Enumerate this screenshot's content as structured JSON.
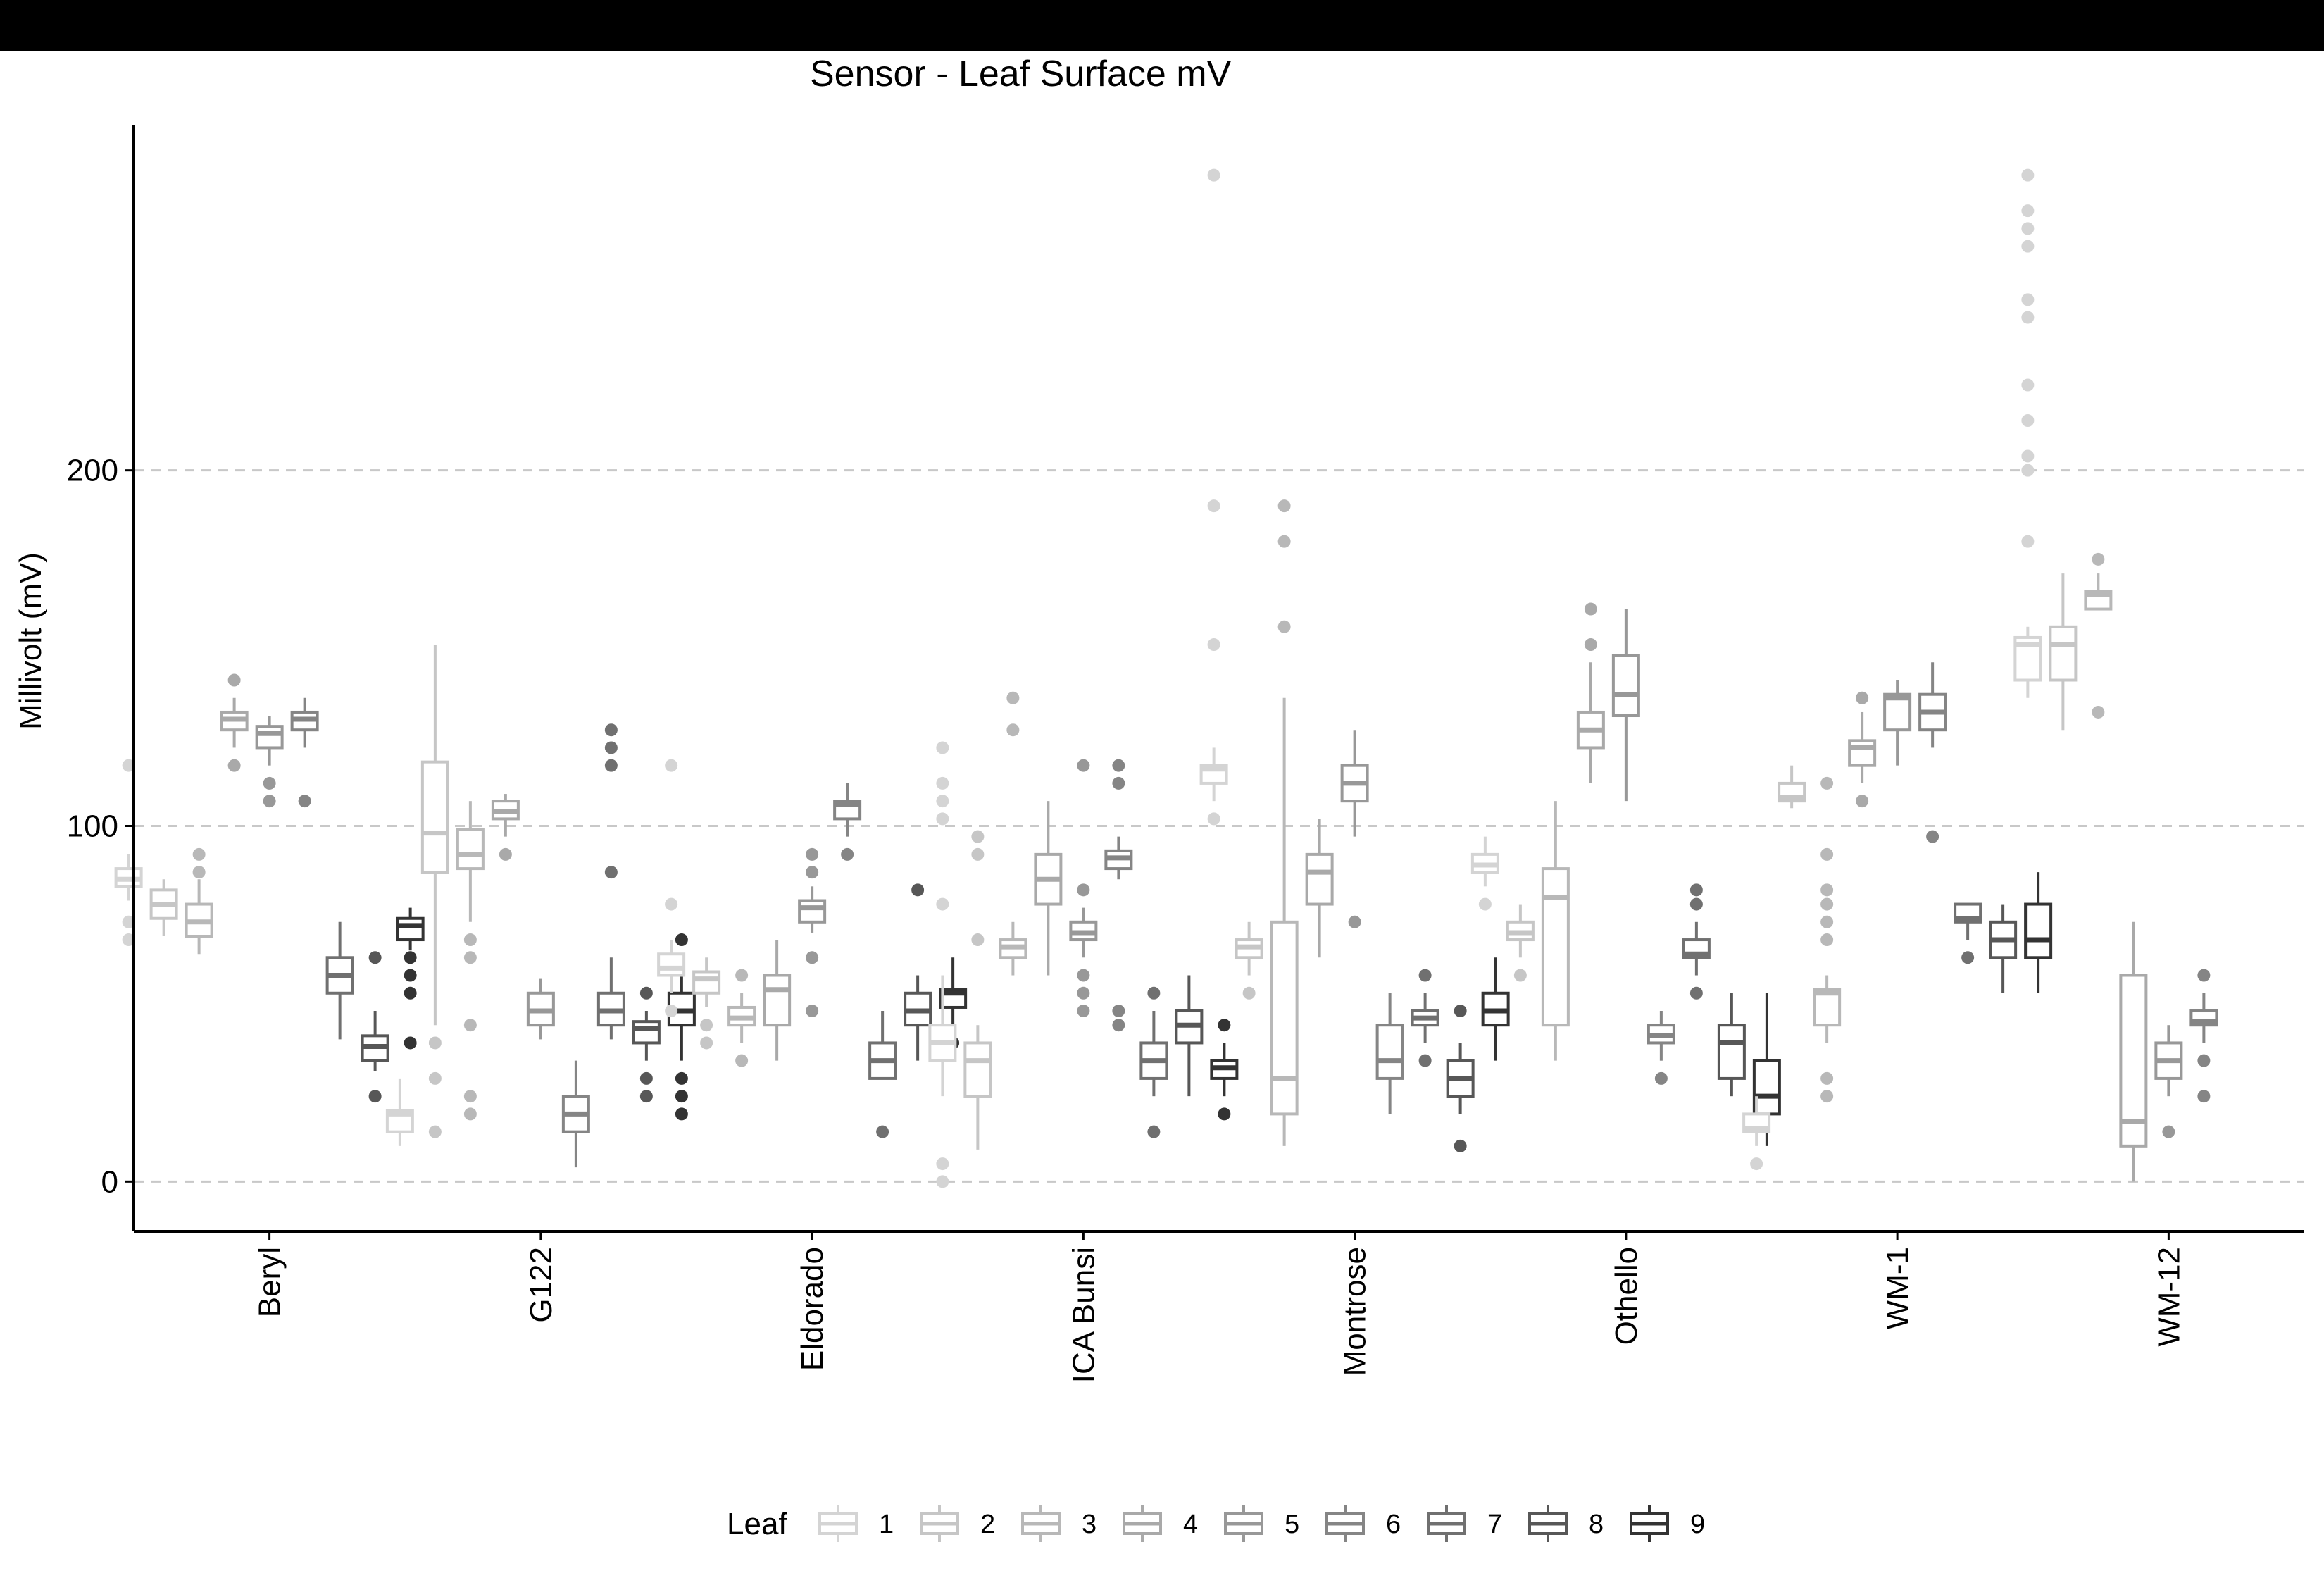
{
  "chart_data": {
    "type": "box",
    "title": "Sensor - Leaf Surface mV",
    "xlabel": "",
    "ylabel": "Millivolt (mV)",
    "ylim": [
      -14,
      297
    ],
    "yticks": [
      0,
      100,
      200
    ],
    "grid": "horizontal dashed at major ticks",
    "categories": [
      "Beryl",
      "G122",
      "Eldorado",
      "ICA Bunsi",
      "Montrose",
      "Othello",
      "WM-1",
      "WM-12"
    ],
    "legend": {
      "title": "Leaf",
      "position": "bottom",
      "items": [
        "1",
        "2",
        "3",
        "4",
        "5",
        "6",
        "7",
        "8",
        "9"
      ]
    },
    "series_colors": [
      "#d4d4d4",
      "#c6c6c6",
      "#b8b8b8",
      "#a9a9a9",
      "#989898",
      "#858585",
      "#707070",
      "#575757",
      "#333333"
    ],
    "boxes": [
      {
        "category": "Beryl",
        "leaf": "1",
        "whisker_low": 79,
        "q1": 83,
        "median": 85,
        "q3": 88,
        "whisker_high": 92,
        "outliers": [
          117,
          73,
          68
        ]
      },
      {
        "category": "Beryl",
        "leaf": "2",
        "whisker_low": 69,
        "q1": 74,
        "median": 78,
        "q3": 82,
        "whisker_high": 85,
        "outliers": []
      },
      {
        "category": "Beryl",
        "leaf": "3",
        "whisker_low": 64,
        "q1": 69,
        "median": 73,
        "q3": 78,
        "whisker_high": 85,
        "outliers": [
          92,
          87
        ]
      },
      {
        "category": "Beryl",
        "leaf": "4",
        "whisker_low": 122,
        "q1": 127,
        "median": 130,
        "q3": 132,
        "whisker_high": 136,
        "outliers": [
          141,
          117
        ]
      },
      {
        "category": "Beryl",
        "leaf": "5",
        "whisker_low": 117,
        "q1": 122,
        "median": 126,
        "q3": 128,
        "whisker_high": 131,
        "outliers": [
          112,
          107
        ]
      },
      {
        "category": "Beryl",
        "leaf": "6",
        "whisker_low": 122,
        "q1": 127,
        "median": 130,
        "q3": 132,
        "whisker_high": 136,
        "outliers": [
          107
        ]
      },
      {
        "category": "Beryl",
        "leaf": "7",
        "whisker_low": 40,
        "q1": 53,
        "median": 58,
        "q3": 63,
        "whisker_high": 73,
        "outliers": []
      },
      {
        "category": "Beryl",
        "leaf": "8",
        "whisker_low": 31,
        "q1": 34,
        "median": 38,
        "q3": 41,
        "whisker_high": 48,
        "outliers": [
          63,
          24
        ]
      },
      {
        "category": "Beryl",
        "leaf": "9",
        "whisker_low": 65,
        "q1": 68,
        "median": 72,
        "q3": 74,
        "whisker_high": 77,
        "outliers": [
          63,
          58,
          53,
          39
        ]
      },
      {
        "category": "G122",
        "leaf": "1",
        "whisker_low": 10,
        "q1": 14,
        "median": 19,
        "q3": 20,
        "whisker_high": 29,
        "outliers": []
      },
      {
        "category": "G122",
        "leaf": "2",
        "whisker_low": 44,
        "q1": 87,
        "median": 98,
        "q3": 118,
        "whisker_high": 151,
        "outliers": [
          39,
          29,
          14
        ]
      },
      {
        "category": "G122",
        "leaf": "3",
        "whisker_low": 73,
        "q1": 88,
        "median": 92,
        "q3": 99,
        "whisker_high": 107,
        "outliers": [
          68,
          63,
          44,
          24,
          19
        ]
      },
      {
        "category": "G122",
        "leaf": "4",
        "whisker_low": 97,
        "q1": 102,
        "median": 104,
        "q3": 107,
        "whisker_high": 109,
        "outliers": [
          92
        ]
      },
      {
        "category": "G122",
        "leaf": "5",
        "whisker_low": 40,
        "q1": 44,
        "median": 48,
        "q3": 53,
        "whisker_high": 57,
        "outliers": []
      },
      {
        "category": "G122",
        "leaf": "6",
        "whisker_low": 4,
        "q1": 14,
        "median": 19,
        "q3": 24,
        "whisker_high": 34,
        "outliers": []
      },
      {
        "category": "G122",
        "leaf": "7",
        "whisker_low": 40,
        "q1": 44,
        "median": 48,
        "q3": 53,
        "whisker_high": 63,
        "outliers": [
          127,
          122,
          117,
          87
        ]
      },
      {
        "category": "G122",
        "leaf": "8",
        "whisker_low": 34,
        "q1": 39,
        "median": 43,
        "q3": 45,
        "whisker_high": 48,
        "outliers": [
          53,
          29,
          24
        ]
      },
      {
        "category": "G122",
        "leaf": "9",
        "whisker_low": 34,
        "q1": 44,
        "median": 48,
        "q3": 53,
        "whisker_high": 63,
        "outliers": [
          68,
          29,
          24,
          19
        ]
      },
      {
        "category": "Eldorado",
        "leaf": "1",
        "whisker_low": 53,
        "q1": 58,
        "median": 60,
        "q3": 64,
        "whisker_high": 68,
        "outliers": [
          117,
          78,
          48
        ]
      },
      {
        "category": "Eldorado",
        "leaf": "2",
        "whisker_low": 49,
        "q1": 53,
        "median": 57,
        "q3": 59,
        "whisker_high": 63,
        "outliers": [
          44,
          39
        ]
      },
      {
        "category": "Eldorado",
        "leaf": "3",
        "whisker_low": 39,
        "q1": 44,
        "median": 46,
        "q3": 49,
        "whisker_high": 53,
        "outliers": [
          58,
          34
        ]
      },
      {
        "category": "Eldorado",
        "leaf": "4",
        "whisker_low": 34,
        "q1": 44,
        "median": 54,
        "q3": 58,
        "whisker_high": 68,
        "outliers": []
      },
      {
        "category": "Eldorado",
        "leaf": "5",
        "whisker_low": 70,
        "q1": 73,
        "median": 77,
        "q3": 79,
        "whisker_high": 83,
        "outliers": [
          92,
          87,
          63,
          48
        ]
      },
      {
        "category": "Eldorado",
        "leaf": "6",
        "whisker_low": 97,
        "q1": 102,
        "median": 106,
        "q3": 107,
        "whisker_high": 112,
        "outliers": [
          92
        ]
      },
      {
        "category": "Eldorado",
        "leaf": "7",
        "whisker_low": 29,
        "q1": 29,
        "median": 34,
        "q3": 39,
        "whisker_high": 48,
        "outliers": [
          14
        ]
      },
      {
        "category": "Eldorado",
        "leaf": "8",
        "whisker_low": 34,
        "q1": 44,
        "median": 48,
        "q3": 53,
        "whisker_high": 58,
        "outliers": [
          82
        ]
      },
      {
        "category": "Eldorado",
        "leaf": "9",
        "whisker_low": 44,
        "q1": 49,
        "median": 53,
        "q3": 54,
        "whisker_high": 63,
        "outliers": [
          39
        ]
      },
      {
        "category": "ICA Bunsi",
        "leaf": "1",
        "whisker_low": 24,
        "q1": 34,
        "median": 39,
        "q3": 44,
        "whisker_high": 58,
        "outliers": [
          122,
          112,
          107,
          102,
          78,
          5,
          0
        ]
      },
      {
        "category": "ICA Bunsi",
        "leaf": "2",
        "whisker_low": 9,
        "q1": 24,
        "median": 34,
        "q3": 39,
        "whisker_high": 44,
        "outliers": [
          97,
          92,
          68
        ]
      },
      {
        "category": "ICA Bunsi",
        "leaf": "3",
        "whisker_low": 58,
        "q1": 63,
        "median": 66,
        "q3": 68,
        "whisker_high": 73,
        "outliers": [
          136,
          127
        ]
      },
      {
        "category": "ICA Bunsi",
        "leaf": "4",
        "whisker_low": 58,
        "q1": 78,
        "median": 85,
        "q3": 92,
        "whisker_high": 107,
        "outliers": []
      },
      {
        "category": "ICA Bunsi",
        "leaf": "5",
        "whisker_low": 63,
        "q1": 68,
        "median": 70,
        "q3": 73,
        "whisker_high": 77,
        "outliers": [
          117,
          82,
          58,
          53,
          48
        ]
      },
      {
        "category": "ICA Bunsi",
        "leaf": "6",
        "whisker_low": 85,
        "q1": 88,
        "median": 91,
        "q3": 93,
        "whisker_high": 97,
        "outliers": [
          117,
          112,
          48,
          44
        ]
      },
      {
        "category": "ICA Bunsi",
        "leaf": "7",
        "whisker_low": 24,
        "q1": 29,
        "median": 34,
        "q3": 39,
        "whisker_high": 48,
        "outliers": [
          53,
          14
        ]
      },
      {
        "category": "ICA Bunsi",
        "leaf": "8",
        "whisker_low": 24,
        "q1": 39,
        "median": 44,
        "q3": 48,
        "whisker_high": 58,
        "outliers": []
      },
      {
        "category": "ICA Bunsi",
        "leaf": "9",
        "whisker_low": 24,
        "q1": 29,
        "median": 32,
        "q3": 34,
        "whisker_high": 39,
        "outliers": [
          44,
          19
        ]
      },
      {
        "category": "Montrose",
        "leaf": "1",
        "whisker_low": 107,
        "q1": 112,
        "median": 116,
        "q3": 117,
        "whisker_high": 122,
        "outliers": [
          283,
          190,
          151,
          102
        ]
      },
      {
        "category": "Montrose",
        "leaf": "2",
        "whisker_low": 58,
        "q1": 63,
        "median": 66,
        "q3": 68,
        "whisker_high": 73,
        "outliers": [
          53
        ]
      },
      {
        "category": "Montrose",
        "leaf": "3",
        "whisker_low": 10,
        "q1": 19,
        "median": 29,
        "q3": 73,
        "whisker_high": 136,
        "outliers": [
          190,
          180,
          156
        ]
      },
      {
        "category": "Montrose",
        "leaf": "4",
        "whisker_low": 63,
        "q1": 78,
        "median": 87,
        "q3": 92,
        "whisker_high": 102,
        "outliers": []
      },
      {
        "category": "Montrose",
        "leaf": "5",
        "whisker_low": 97,
        "q1": 107,
        "median": 112,
        "q3": 117,
        "whisker_high": 127,
        "outliers": [
          73
        ]
      },
      {
        "category": "Montrose",
        "leaf": "6",
        "whisker_low": 19,
        "q1": 29,
        "median": 34,
        "q3": 44,
        "whisker_high": 53,
        "outliers": []
      },
      {
        "category": "Montrose",
        "leaf": "7",
        "whisker_low": 39,
        "q1": 44,
        "median": 46,
        "q3": 48,
        "whisker_high": 53,
        "outliers": [
          58,
          34
        ]
      },
      {
        "category": "Montrose",
        "leaf": "8",
        "whisker_low": 19,
        "q1": 24,
        "median": 29,
        "q3": 34,
        "whisker_high": 39,
        "outliers": [
          48,
          10
        ]
      },
      {
        "category": "Montrose",
        "leaf": "9",
        "whisker_low": 34,
        "q1": 44,
        "median": 48,
        "q3": 53,
        "whisker_high": 63,
        "outliers": []
      },
      {
        "category": "Othello",
        "leaf": "1",
        "whisker_low": 83,
        "q1": 87,
        "median": 89,
        "q3": 92,
        "whisker_high": 97,
        "outliers": [
          78
        ]
      },
      {
        "category": "Othello",
        "leaf": "2",
        "whisker_low": 63,
        "q1": 68,
        "median": 70,
        "q3": 73,
        "whisker_high": 78,
        "outliers": [
          58
        ]
      },
      {
        "category": "Othello",
        "leaf": "3",
        "whisker_low": 34,
        "q1": 44,
        "median": 80,
        "q3": 88,
        "whisker_high": 107,
        "outliers": []
      },
      {
        "category": "Othello",
        "leaf": "4",
        "whisker_low": 112,
        "q1": 122,
        "median": 127,
        "q3": 132,
        "whisker_high": 146,
        "outliers": [
          161,
          151
        ]
      },
      {
        "category": "Othello",
        "leaf": "5",
        "whisker_low": 107,
        "q1": 131,
        "median": 137,
        "q3": 148,
        "whisker_high": 161,
        "outliers": []
      },
      {
        "category": "Othello",
        "leaf": "6",
        "whisker_low": 34,
        "q1": 39,
        "median": 41,
        "q3": 44,
        "whisker_high": 48,
        "outliers": [
          29
        ]
      },
      {
        "category": "Othello",
        "leaf": "7",
        "whisker_low": 58,
        "q1": 63,
        "median": 64,
        "q3": 68,
        "whisker_high": 73,
        "outliers": [
          82,
          78,
          53
        ]
      },
      {
        "category": "Othello",
        "leaf": "8",
        "whisker_low": 24,
        "q1": 29,
        "median": 39,
        "q3": 44,
        "whisker_high": 53,
        "outliers": []
      },
      {
        "category": "Othello",
        "leaf": "9",
        "whisker_low": 10,
        "q1": 19,
        "median": 24,
        "q3": 34,
        "whisker_high": 53,
        "outliers": []
      },
      {
        "category": "WM-1",
        "leaf": "1",
        "whisker_low": 10,
        "q1": 14,
        "median": 15,
        "q3": 19,
        "whisker_high": 24,
        "outliers": [
          5
        ]
      },
      {
        "category": "WM-1",
        "leaf": "2",
        "whisker_low": 105,
        "q1": 107,
        "median": 108,
        "q3": 112,
        "whisker_high": 117,
        "outliers": []
      },
      {
        "category": "WM-1",
        "leaf": "3",
        "whisker_low": 39,
        "q1": 44,
        "median": 53,
        "q3": 54,
        "whisker_high": 58,
        "outliers": [
          112,
          92,
          82,
          78,
          73,
          68,
          29,
          24
        ]
      },
      {
        "category": "WM-1",
        "leaf": "4",
        "whisker_low": 112,
        "q1": 117,
        "median": 122,
        "q3": 124,
        "whisker_high": 132,
        "outliers": [
          136,
          107
        ]
      },
      {
        "category": "WM-1",
        "leaf": "5",
        "whisker_low": 117,
        "q1": 127,
        "median": 136,
        "q3": 137,
        "whisker_high": 141,
        "outliers": []
      },
      {
        "category": "WM-1",
        "leaf": "6",
        "whisker_low": 122,
        "q1": 127,
        "median": 132,
        "q3": 137,
        "whisker_high": 146,
        "outliers": [
          97
        ]
      },
      {
        "category": "WM-1",
        "leaf": "7",
        "whisker_low": 68,
        "q1": 73,
        "median": 74,
        "q3": 78,
        "whisker_high": 78,
        "outliers": [
          63
        ]
      },
      {
        "category": "WM-1",
        "leaf": "8",
        "whisker_low": 53,
        "q1": 63,
        "median": 68,
        "q3": 73,
        "whisker_high": 78,
        "outliers": []
      },
      {
        "category": "WM-1",
        "leaf": "9",
        "whisker_low": 53,
        "q1": 63,
        "median": 68,
        "q3": 78,
        "whisker_high": 87,
        "outliers": []
      },
      {
        "category": "WM-12",
        "leaf": "1",
        "whisker_low": 136,
        "q1": 141,
        "median": 151,
        "q3": 153,
        "whisker_high": 156,
        "outliers": [
          283,
          273,
          268,
          263,
          248,
          243,
          224,
          214,
          204,
          200,
          180
        ]
      },
      {
        "category": "WM-12",
        "leaf": "2",
        "whisker_low": 127,
        "q1": 141,
        "median": 151,
        "q3": 156,
        "whisker_high": 171,
        "outliers": []
      },
      {
        "category": "WM-12",
        "leaf": "3",
        "whisker_low": 161,
        "q1": 161,
        "median": 165,
        "q3": 166,
        "whisker_high": 171,
        "outliers": [
          175,
          132
        ]
      },
      {
        "category": "WM-12",
        "leaf": "4",
        "whisker_low": 0,
        "q1": 10,
        "median": 17,
        "q3": 58,
        "whisker_high": 73,
        "outliers": []
      },
      {
        "category": "WM-12",
        "leaf": "5",
        "whisker_low": 24,
        "q1": 29,
        "median": 34,
        "q3": 39,
        "whisker_high": 44,
        "outliers": [
          14
        ]
      },
      {
        "category": "WM-12",
        "leaf": "6",
        "whisker_low": 39,
        "q1": 44,
        "median": 45,
        "q3": 48,
        "whisker_high": 53,
        "outliers": [
          58,
          34,
          24
        ]
      }
    ]
  }
}
